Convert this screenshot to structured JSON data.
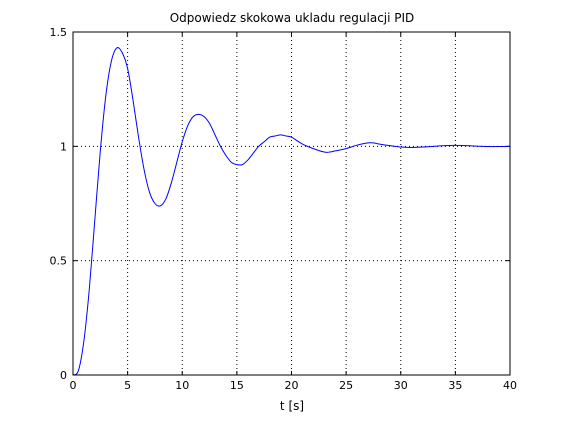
{
  "chart_data": {
    "type": "line",
    "title": "Odpowiedz skokowa ukladu regulacji PID",
    "xlabel": "t [s]",
    "ylabel": "",
    "xlim": [
      0,
      40
    ],
    "ylim": [
      0,
      1.5
    ],
    "xticks": [
      0,
      5,
      10,
      15,
      20,
      25,
      30,
      35,
      40
    ],
    "xtick_labels": [
      "0",
      "5",
      "10",
      "15",
      "20",
      "25",
      "30",
      "35",
      "40"
    ],
    "yticks": [
      0,
      0.5,
      1,
      1.5
    ],
    "ytick_labels": [
      "0",
      "0.5",
      "1",
      "1.5"
    ],
    "grid": true,
    "grid_style": "dotted",
    "legend": false,
    "series": [
      {
        "color": "#0000ff",
        "x": [
          0,
          0.5,
          1,
          1.5,
          2,
          2.5,
          3,
          3.5,
          4,
          4.5,
          5,
          5.5,
          6,
          6.5,
          7,
          7.5,
          8,
          8.5,
          9,
          9.5,
          10,
          10.5,
          11,
          11.5,
          12,
          12.5,
          13,
          13.5,
          14,
          14.5,
          15,
          15.5,
          16,
          16.5,
          17,
          17.5,
          18,
          18.5,
          19,
          19.5,
          20,
          21,
          22,
          23,
          23.5,
          24,
          25,
          26,
          27,
          27.5,
          28,
          29,
          30,
          31,
          32,
          33,
          34,
          35,
          36,
          37,
          38,
          39,
          40
        ],
        "y": [
          0,
          0.02,
          0.15,
          0.38,
          0.68,
          0.98,
          1.22,
          1.37,
          1.43,
          1.41,
          1.34,
          1.2,
          1.04,
          0.9,
          0.8,
          0.75,
          0.74,
          0.77,
          0.84,
          0.93,
          1.02,
          1.09,
          1.13,
          1.14,
          1.13,
          1.1,
          1.05,
          1.0,
          0.96,
          0.93,
          0.92,
          0.92,
          0.94,
          0.97,
          1.0,
          1.02,
          1.04,
          1.045,
          1.05,
          1.045,
          1.04,
          1.01,
          0.99,
          0.975,
          0.975,
          0.98,
          0.99,
          1.005,
          1.015,
          1.015,
          1.01,
          1.003,
          0.997,
          0.995,
          0.997,
          1.0,
          1.003,
          1.004,
          1.003,
          1.001,
          0.999,
          0.999,
          1.0
        ]
      }
    ]
  }
}
